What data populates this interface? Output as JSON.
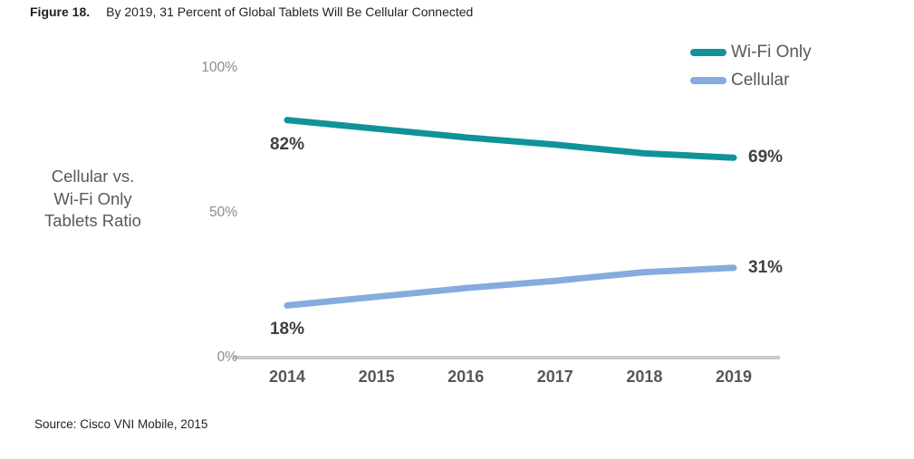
{
  "figure": {
    "label": "Figure 18.",
    "caption": "By 2019, 31 Percent of Global Tablets Will Be Cellular Connected"
  },
  "axis_title_lines": [
    "Cellular vs.",
    "Wi-Fi Only",
    "Tablets Ratio"
  ],
  "source": "Source: Cisco VNI Mobile, 2015",
  "colors": {
    "wifi_line": "#10929a",
    "cellular_line": "#85abdf",
    "axis_line": "#c9cacc",
    "tick_text": "#8a8c8f",
    "year_text": "#565759",
    "point_label_text": "#3f4042",
    "legend_text": "#58595b"
  },
  "chart_data": {
    "type": "line",
    "title": "By 2019, 31 Percent of Global Tablets Will Be Cellular Connected",
    "ylabel": "Cellular vs. Wi-Fi Only Tablets Ratio",
    "xlabel": "",
    "categories": [
      "2014",
      "2015",
      "2016",
      "2017",
      "2018",
      "2019"
    ],
    "series": [
      {
        "name": "Wi-Fi Only",
        "color": "#10929a",
        "values": [
          82,
          79,
          76,
          73.5,
          70.5,
          69
        ],
        "start_label": "82%",
        "end_label": "69%"
      },
      {
        "name": "Cellular",
        "color": "#85abdf",
        "values": [
          18,
          21,
          24,
          26.5,
          29.5,
          31
        ],
        "start_label": "18%",
        "end_label": "31%"
      }
    ],
    "y_ticks": [
      {
        "label": "0%",
        "value": 0
      },
      {
        "label": "50%",
        "value": 50
      },
      {
        "label": "100%",
        "value": 100
      }
    ],
    "ylim": [
      0,
      100
    ],
    "grid": false,
    "legend_position": "top-right"
  }
}
